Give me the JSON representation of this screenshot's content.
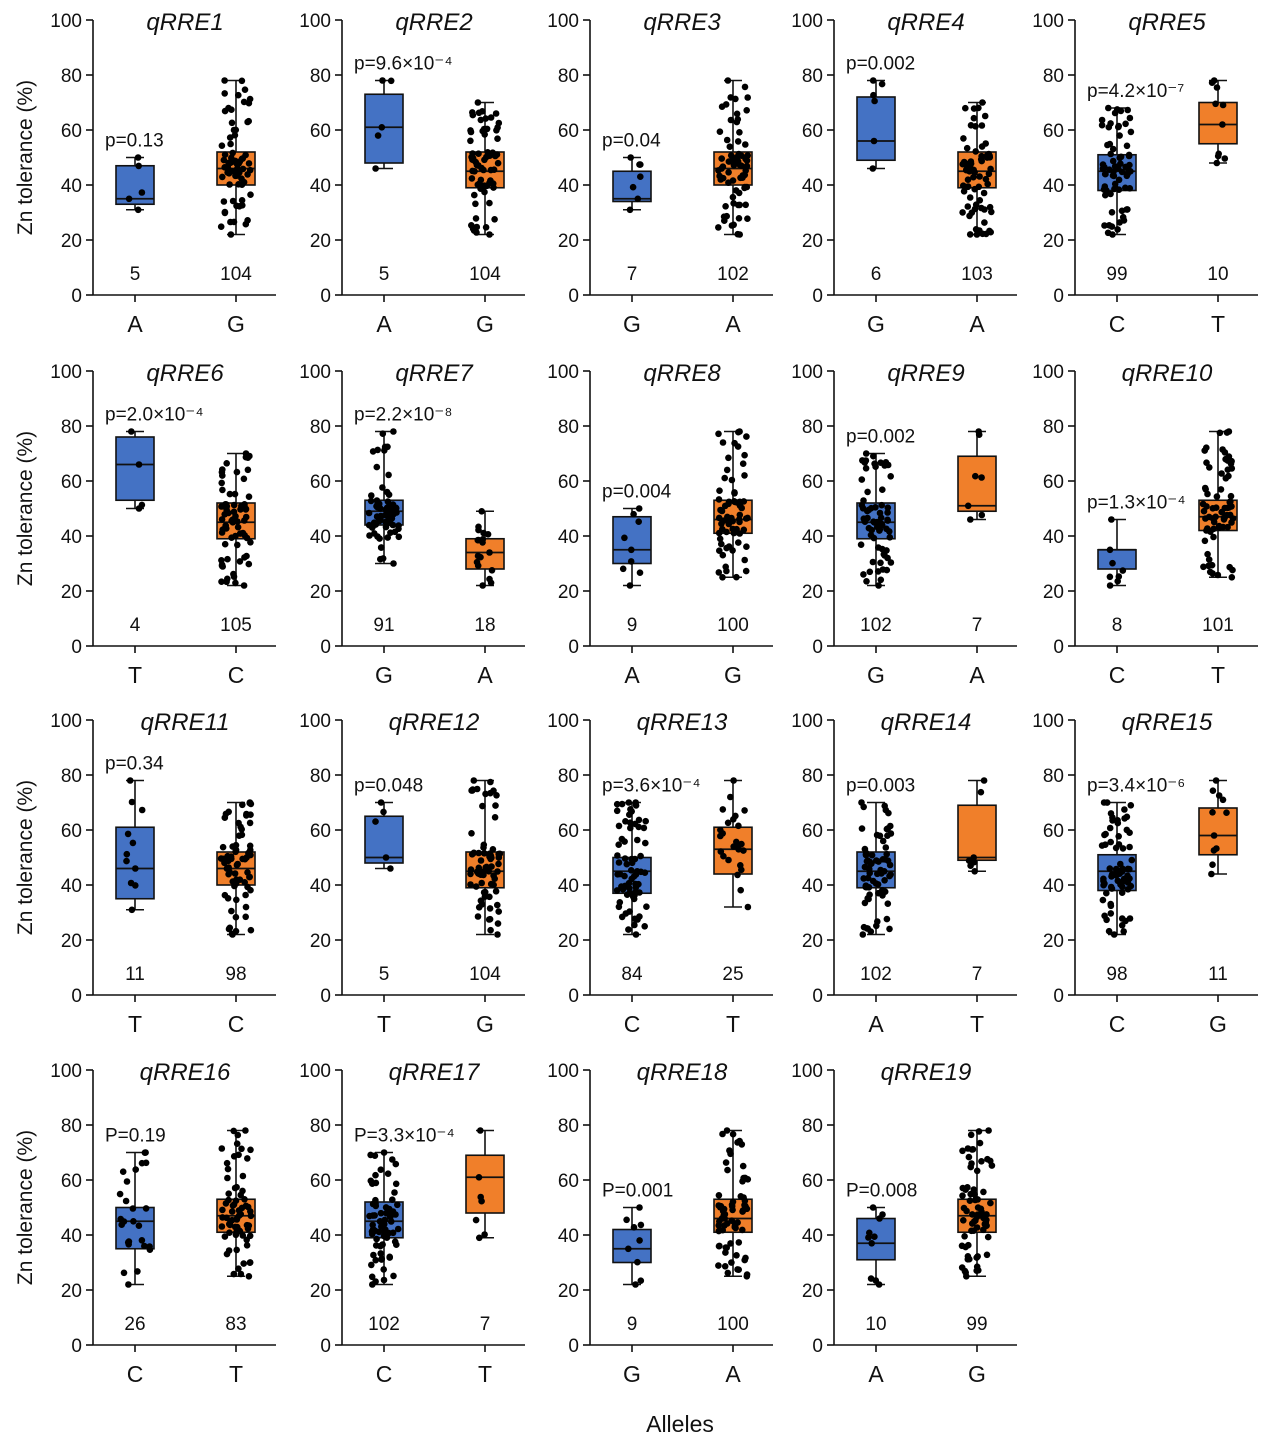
{
  "ylabel": "Zn tolerance (%)",
  "xlabel": "Alleles",
  "colors": {
    "first_group": "#4472c4",
    "second_group": "#f07f2a",
    "points": "#000000"
  },
  "chart_data": [
    {
      "type": "box",
      "title": "qRRE1",
      "p": "p=0.13",
      "ylim": [
        0,
        100
      ],
      "yticks": [
        0,
        20,
        40,
        60,
        80,
        100
      ],
      "groups": [
        {
          "allele": "A",
          "n": "5",
          "color": "blue",
          "min": 31,
          "q1": 33,
          "median": 35,
          "q3": 47,
          "max": 50
        },
        {
          "allele": "G",
          "n": "104",
          "color": "orange",
          "min": 22,
          "q1": 40,
          "median": 46,
          "q3": 52,
          "max": 78
        }
      ]
    },
    {
      "type": "box",
      "title": "qRRE2",
      "p": "p=9.6×10⁻⁴",
      "ylim": [
        0,
        100
      ],
      "yticks": [
        0,
        20,
        40,
        60,
        80,
        100
      ],
      "groups": [
        {
          "allele": "A",
          "n": "5",
          "color": "blue",
          "min": 46,
          "q1": 48,
          "median": 61,
          "q3": 73,
          "max": 78
        },
        {
          "allele": "G",
          "n": "104",
          "color": "orange",
          "min": 22,
          "q1": 39,
          "median": 45,
          "q3": 52,
          "max": 70
        }
      ]
    },
    {
      "type": "box",
      "title": "qRRE3",
      "p": "p=0.04",
      "ylim": [
        0,
        100
      ],
      "yticks": [
        0,
        20,
        40,
        60,
        80,
        100
      ],
      "groups": [
        {
          "allele": "G",
          "n": "7",
          "color": "blue",
          "min": 31,
          "q1": 34,
          "median": 35,
          "q3": 45,
          "max": 50
        },
        {
          "allele": "A",
          "n": "102",
          "color": "orange",
          "min": 22,
          "q1": 40,
          "median": 46,
          "q3": 52,
          "max": 78
        }
      ]
    },
    {
      "type": "box",
      "title": "qRRE4",
      "p": "p=0.002",
      "ylim": [
        0,
        100
      ],
      "yticks": [
        0,
        20,
        40,
        60,
        80,
        100
      ],
      "groups": [
        {
          "allele": "G",
          "n": "6",
          "color": "blue",
          "min": 46,
          "q1": 49,
          "median": 56,
          "q3": 72,
          "max": 78
        },
        {
          "allele": "A",
          "n": "103",
          "color": "orange",
          "min": 22,
          "q1": 39,
          "median": 45,
          "q3": 52,
          "max": 70
        }
      ]
    },
    {
      "type": "box",
      "title": "qRRE5",
      "p": "p=4.2×10⁻⁷",
      "ylim": [
        0,
        100
      ],
      "yticks": [
        0,
        20,
        40,
        60,
        80,
        100
      ],
      "groups": [
        {
          "allele": "C",
          "n": "99",
          "color": "blue",
          "min": 22,
          "q1": 38,
          "median": 45,
          "q3": 51,
          "max": 68
        },
        {
          "allele": "T",
          "n": "10",
          "color": "orange",
          "min": 48,
          "q1": 55,
          "median": 62,
          "q3": 70,
          "max": 78
        }
      ]
    },
    {
      "type": "box",
      "title": "qRRE6",
      "p": "p=2.0×10⁻⁴",
      "ylim": [
        0,
        100
      ],
      "yticks": [
        0,
        20,
        40,
        60,
        80,
        100
      ],
      "groups": [
        {
          "allele": "T",
          "n": "4",
          "color": "blue",
          "min": 50,
          "q1": 53,
          "median": 66,
          "q3": 76,
          "max": 78
        },
        {
          "allele": "C",
          "n": "105",
          "color": "orange",
          "min": 22,
          "q1": 39,
          "median": 45,
          "q3": 52,
          "max": 70
        }
      ]
    },
    {
      "type": "box",
      "title": "qRRE7",
      "p": "p=2.2×10⁻⁸",
      "ylim": [
        0,
        100
      ],
      "yticks": [
        0,
        20,
        40,
        60,
        80,
        100
      ],
      "groups": [
        {
          "allele": "G",
          "n": "91",
          "color": "blue",
          "min": 30,
          "q1": 44,
          "median": 49,
          "q3": 53,
          "max": 78
        },
        {
          "allele": "A",
          "n": "18",
          "color": "orange",
          "min": 22,
          "q1": 28,
          "median": 34,
          "q3": 39,
          "max": 49
        }
      ]
    },
    {
      "type": "box",
      "title": "qRRE8",
      "p": "p=0.004",
      "ylim": [
        0,
        100
      ],
      "yticks": [
        0,
        20,
        40,
        60,
        80,
        100
      ],
      "groups": [
        {
          "allele": "A",
          "n": "9",
          "color": "blue",
          "min": 22,
          "q1": 30,
          "median": 35,
          "q3": 47,
          "max": 50
        },
        {
          "allele": "G",
          "n": "100",
          "color": "orange",
          "min": 25,
          "q1": 41,
          "median": 46,
          "q3": 53,
          "max": 78
        }
      ]
    },
    {
      "type": "box",
      "title": "qRRE9",
      "p": "p=0.002",
      "ylim": [
        0,
        100
      ],
      "yticks": [
        0,
        20,
        40,
        60,
        80,
        100
      ],
      "groups": [
        {
          "allele": "G",
          "n": "102",
          "color": "blue",
          "min": 22,
          "q1": 39,
          "median": 45,
          "q3": 52,
          "max": 70
        },
        {
          "allele": "A",
          "n": "7",
          "color": "orange",
          "min": 46,
          "q1": 49,
          "median": 51,
          "q3": 69,
          "max": 78
        }
      ]
    },
    {
      "type": "box",
      "title": "qRRE10",
      "p": "p=1.3×10⁻⁴",
      "ylim": [
        0,
        100
      ],
      "yticks": [
        0,
        20,
        40,
        60,
        80,
        100
      ],
      "groups": [
        {
          "allele": "C",
          "n": "8",
          "color": "blue",
          "min": 22,
          "q1": 28,
          "median": 35,
          "q3": 35,
          "max": 46
        },
        {
          "allele": "T",
          "n": "101",
          "color": "orange",
          "min": 25,
          "q1": 42,
          "median": 47,
          "q3": 53,
          "max": 78
        }
      ]
    },
    {
      "type": "box",
      "title": "qRRE11",
      "p": "p=0.34",
      "ylim": [
        0,
        100
      ],
      "yticks": [
        0,
        20,
        40,
        60,
        80,
        100
      ],
      "groups": [
        {
          "allele": "T",
          "n": "11",
          "color": "blue",
          "min": 31,
          "q1": 35,
          "median": 46,
          "q3": 61,
          "max": 78
        },
        {
          "allele": "C",
          "n": "98",
          "color": "orange",
          "min": 22,
          "q1": 40,
          "median": 46,
          "q3": 52,
          "max": 70
        }
      ]
    },
    {
      "type": "box",
      "title": "qRRE12",
      "p": "p=0.048",
      "ylim": [
        0,
        100
      ],
      "yticks": [
        0,
        20,
        40,
        60,
        80,
        100
      ],
      "groups": [
        {
          "allele": "T",
          "n": "5",
          "color": "blue",
          "min": 46,
          "q1": 48,
          "median": 50,
          "q3": 65,
          "max": 70
        },
        {
          "allele": "G",
          "n": "104",
          "color": "orange",
          "min": 22,
          "q1": 39,
          "median": 45,
          "q3": 52,
          "max": 78
        }
      ]
    },
    {
      "type": "box",
      "title": "qRRE13",
      "p": "p=3.6×10⁻⁴",
      "ylim": [
        0,
        100
      ],
      "yticks": [
        0,
        20,
        40,
        60,
        80,
        100
      ],
      "groups": [
        {
          "allele": "C",
          "n": "84",
          "color": "blue",
          "min": 22,
          "q1": 37,
          "median": 45,
          "q3": 50,
          "max": 70
        },
        {
          "allele": "T",
          "n": "25",
          "color": "orange",
          "min": 32,
          "q1": 44,
          "median": 53,
          "q3": 61,
          "max": 78
        }
      ]
    },
    {
      "type": "box",
      "title": "qRRE14",
      "p": "p=0.003",
      "ylim": [
        0,
        100
      ],
      "yticks": [
        0,
        20,
        40,
        60,
        80,
        100
      ],
      "groups": [
        {
          "allele": "A",
          "n": "102",
          "color": "blue",
          "min": 22,
          "q1": 39,
          "median": 45,
          "q3": 52,
          "max": 70
        },
        {
          "allele": "T",
          "n": "7",
          "color": "orange",
          "min": 45,
          "q1": 49,
          "median": 50,
          "q3": 69,
          "max": 78
        }
      ]
    },
    {
      "type": "box",
      "title": "qRRE15",
      "p": "p=3.4×10⁻⁶",
      "ylim": [
        0,
        100
      ],
      "yticks": [
        0,
        20,
        40,
        60,
        80,
        100
      ],
      "groups": [
        {
          "allele": "C",
          "n": "98",
          "color": "blue",
          "min": 22,
          "q1": 38,
          "median": 45,
          "q3": 51,
          "max": 70
        },
        {
          "allele": "G",
          "n": "11",
          "color": "orange",
          "min": 44,
          "q1": 51,
          "median": 58,
          "q3": 68,
          "max": 78
        }
      ]
    },
    {
      "type": "box",
      "title": "qRRE16",
      "p": "P=0.19",
      "ylim": [
        0,
        100
      ],
      "yticks": [
        0,
        20,
        40,
        60,
        80,
        100
      ],
      "groups": [
        {
          "allele": "C",
          "n": "26",
          "color": "blue",
          "min": 22,
          "q1": 35,
          "median": 45,
          "q3": 50,
          "max": 70
        },
        {
          "allele": "T",
          "n": "83",
          "color": "orange",
          "min": 25,
          "q1": 41,
          "median": 47,
          "q3": 53,
          "max": 78
        }
      ]
    },
    {
      "type": "box",
      "title": "qRRE17",
      "p": "P=3.3×10⁻⁴",
      "ylim": [
        0,
        100
      ],
      "yticks": [
        0,
        20,
        40,
        60,
        80,
        100
      ],
      "groups": [
        {
          "allele": "C",
          "n": "102",
          "color": "blue",
          "min": 22,
          "q1": 39,
          "median": 45,
          "q3": 52,
          "max": 70
        },
        {
          "allele": "T",
          "n": "7",
          "color": "orange",
          "min": 39,
          "q1": 48,
          "median": 61,
          "q3": 69,
          "max": 78
        }
      ]
    },
    {
      "type": "box",
      "title": "qRRE18",
      "p": "P=0.001",
      "ylim": [
        0,
        100
      ],
      "yticks": [
        0,
        20,
        40,
        60,
        80,
        100
      ],
      "groups": [
        {
          "allele": "G",
          "n": "9",
          "color": "blue",
          "min": 22,
          "q1": 30,
          "median": 35,
          "q3": 42,
          "max": 50
        },
        {
          "allele": "A",
          "n": "100",
          "color": "orange",
          "min": 25,
          "q1": 41,
          "median": 46,
          "q3": 53,
          "max": 78
        }
      ]
    },
    {
      "type": "box",
      "title": "qRRE19",
      "p": "P=0.008",
      "ylim": [
        0,
        100
      ],
      "yticks": [
        0,
        20,
        40,
        60,
        80,
        100
      ],
      "groups": [
        {
          "allele": "A",
          "n": "10",
          "color": "blue",
          "min": 22,
          "q1": 31,
          "median": 37,
          "q3": 46,
          "max": 50
        },
        {
          "allele": "G",
          "n": "99",
          "color": "orange",
          "min": 25,
          "q1": 41,
          "median": 47,
          "q3": 53,
          "max": 78
        }
      ]
    }
  ]
}
